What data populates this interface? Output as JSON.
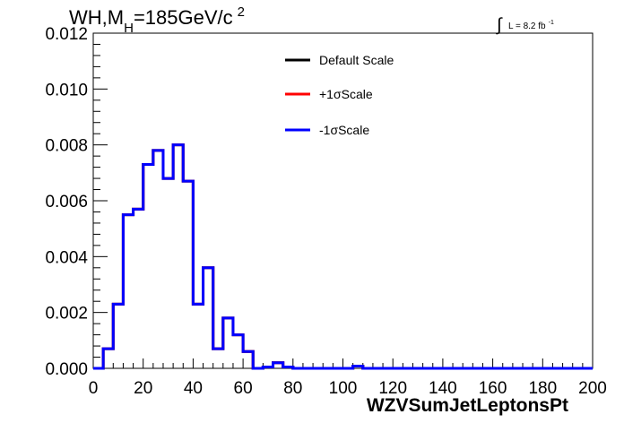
{
  "chart_data": {
    "type": "line",
    "title": {
      "main": "WH,M",
      "sub": "H",
      "rest": "=185GeV/c",
      "sup": "2"
    },
    "lumi": {
      "symbol": "∫",
      "text": "L = 8.2 fb",
      "sup": "-1"
    },
    "xlabel": "WZVSumJetLeptonsPt",
    "ylabel": "",
    "xlim": [
      0,
      200
    ],
    "ylim": [
      0,
      0.012
    ],
    "x_ticks": [
      "0",
      "20",
      "40",
      "60",
      "80",
      "100",
      "120",
      "140",
      "160",
      "180",
      "200"
    ],
    "y_ticks": [
      "0.000",
      "0.002",
      "0.004",
      "0.006",
      "0.008",
      "0.010",
      "0.012"
    ],
    "bin_edges": [
      0,
      4,
      8,
      12,
      16,
      20,
      24,
      28,
      32,
      36,
      40,
      44,
      48,
      52,
      56,
      60,
      64,
      68,
      72,
      76,
      80,
      84,
      88,
      92,
      96,
      100,
      104,
      108,
      112,
      116,
      120,
      124,
      128,
      132,
      136,
      140,
      144,
      148,
      152,
      156,
      160,
      164,
      168,
      172,
      176,
      180,
      184,
      188,
      192,
      196,
      200
    ],
    "series": [
      {
        "name": "Default Scale",
        "color": "#000000",
        "values": [
          0,
          0.0007,
          0.0023,
          0.0055,
          0.0057,
          0.0073,
          0.0078,
          0.0068,
          0.008,
          0.0067,
          0.0023,
          0.0036,
          0.0007,
          0.0018,
          0.0012,
          0.0006,
          0,
          5e-05,
          0.0002,
          5e-05,
          0,
          0,
          0,
          0,
          0,
          0,
          8e-05,
          0,
          0,
          0,
          0,
          0,
          0,
          0,
          0,
          0,
          0,
          0,
          0,
          0,
          0,
          0,
          0,
          0,
          0,
          0,
          0,
          0,
          0,
          0
        ]
      },
      {
        "name": "+1σScale",
        "color": "#ff0000",
        "values": [
          0,
          0.0007,
          0.0023,
          0.0055,
          0.0057,
          0.0073,
          0.0078,
          0.0068,
          0.008,
          0.0067,
          0.0023,
          0.0036,
          0.0007,
          0.0018,
          0.0012,
          0.0006,
          0,
          5e-05,
          0.0002,
          5e-05,
          0,
          0,
          0,
          0,
          0,
          0,
          8e-05,
          0,
          0,
          0,
          0,
          0,
          0,
          0,
          0,
          0,
          0,
          0,
          0,
          0,
          0,
          0,
          0,
          0,
          0,
          0,
          0,
          0,
          0,
          0
        ]
      },
      {
        "name": "-1σScale",
        "color": "#0000ff",
        "values": [
          0,
          0.0007,
          0.0023,
          0.0055,
          0.0057,
          0.0073,
          0.0078,
          0.0068,
          0.008,
          0.0067,
          0.0023,
          0.0036,
          0.0007,
          0.0018,
          0.0012,
          0.0006,
          0,
          5e-05,
          0.0002,
          5e-05,
          0,
          0,
          0,
          0,
          0,
          0,
          8e-05,
          0,
          0,
          0,
          0,
          0,
          0,
          0,
          0,
          0,
          0,
          0,
          0,
          0,
          0,
          0,
          0,
          0,
          0,
          0,
          0,
          0,
          0,
          0
        ]
      }
    ],
    "legend_placement": "top-center",
    "grid": false
  }
}
